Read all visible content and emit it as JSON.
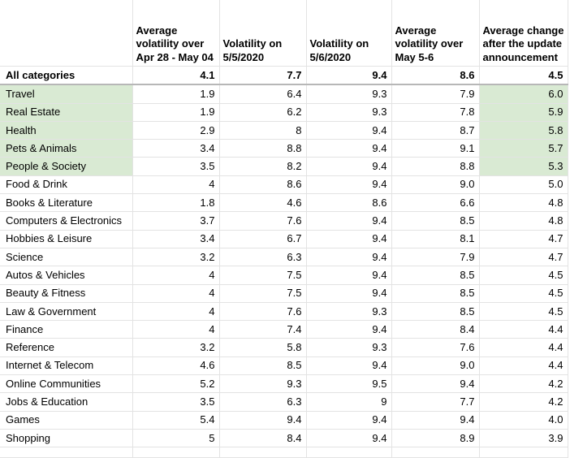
{
  "headers": [
    "",
    "Average volatility over Apr 28 - May 04",
    "Volatility on 5/5/2020",
    "Volatility on 5/6/2020",
    "Average volatility over May 5-6",
    "Average change after the update announcement"
  ],
  "colors": {
    "highlight": "#d9ead3",
    "gridline": "#e3e3e3"
  },
  "rows": [
    {
      "cells": [
        "All categories",
        "4.1",
        "7.7",
        "9.4",
        "8.6",
        "4.5"
      ],
      "bold": true
    },
    {
      "cells": [
        "Travel",
        "1.9",
        "6.4",
        "9.3",
        "7.9",
        "6.0"
      ],
      "highlight": true
    },
    {
      "cells": [
        "Real Estate",
        "1.9",
        "6.2",
        "9.3",
        "7.8",
        "5.9"
      ],
      "highlight": true
    },
    {
      "cells": [
        "Health",
        "2.9",
        "8",
        "9.4",
        "8.7",
        "5.8"
      ],
      "highlight": true
    },
    {
      "cells": [
        "Pets & Animals",
        "3.4",
        "8.8",
        "9.4",
        "9.1",
        "5.7"
      ],
      "highlight": true
    },
    {
      "cells": [
        "People & Society",
        "3.5",
        "8.2",
        "9.4",
        "8.8",
        "5.3"
      ],
      "highlight": true
    },
    {
      "cells": [
        "Food & Drink",
        "4",
        "8.6",
        "9.4",
        "9.0",
        "5.0"
      ]
    },
    {
      "cells": [
        "Books & Literature",
        "1.8",
        "4.6",
        "8.6",
        "6.6",
        "4.8"
      ]
    },
    {
      "cells": [
        "Computers & Electronics",
        "3.7",
        "7.6",
        "9.4",
        "8.5",
        "4.8"
      ]
    },
    {
      "cells": [
        "Hobbies & Leisure",
        "3.4",
        "6.7",
        "9.4",
        "8.1",
        "4.7"
      ]
    },
    {
      "cells": [
        "Science",
        "3.2",
        "6.3",
        "9.4",
        "7.9",
        "4.7"
      ]
    },
    {
      "cells": [
        "Autos & Vehicles",
        "4",
        "7.5",
        "9.4",
        "8.5",
        "4.5"
      ]
    },
    {
      "cells": [
        "Beauty & Fitness",
        "4",
        "7.5",
        "9.4",
        "8.5",
        "4.5"
      ]
    },
    {
      "cells": [
        "Law & Government",
        "4",
        "7.6",
        "9.3",
        "8.5",
        "4.5"
      ]
    },
    {
      "cells": [
        "Finance",
        "4",
        "7.4",
        "9.4",
        "8.4",
        "4.4"
      ]
    },
    {
      "cells": [
        "Reference",
        "3.2",
        "5.8",
        "9.3",
        "7.6",
        "4.4"
      ]
    },
    {
      "cells": [
        "Internet & Telecom",
        "4.6",
        "8.5",
        "9.4",
        "9.0",
        "4.4"
      ]
    },
    {
      "cells": [
        "Online Communities",
        "5.2",
        "9.3",
        "9.5",
        "9.4",
        "4.2"
      ]
    },
    {
      "cells": [
        "Jobs & Education",
        "3.5",
        "6.3",
        "9",
        "7.7",
        "4.2"
      ]
    },
    {
      "cells": [
        "Games",
        "5.4",
        "9.4",
        "9.4",
        "9.4",
        "4.0"
      ]
    },
    {
      "cells": [
        "Shopping",
        "5",
        "8.4",
        "9.4",
        "8.9",
        "3.9"
      ]
    }
  ]
}
